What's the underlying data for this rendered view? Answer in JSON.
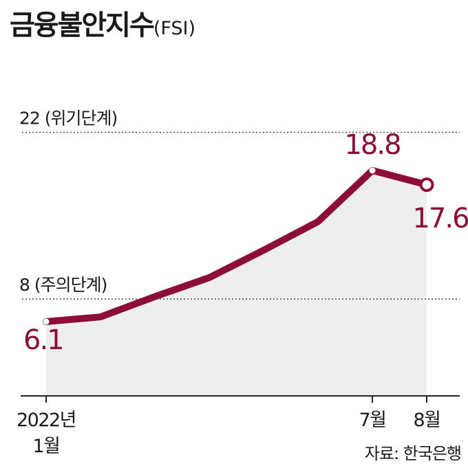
{
  "title": {
    "main": "금융불안지수",
    "sub": "(FSI)"
  },
  "source": "자료: 한국은행",
  "chart_data": {
    "type": "area",
    "points": [
      {
        "month": 1,
        "value": 6.1
      },
      {
        "month": 2,
        "value": 6.5
      },
      {
        "month": 3,
        "value": 8.2
      },
      {
        "month": 4,
        "value": 9.8
      },
      {
        "month": 5,
        "value": 12.1
      },
      {
        "month": 6,
        "value": 14.5
      },
      {
        "month": 7,
        "value": 18.8
      },
      {
        "month": 8,
        "value": 17.6
      }
    ],
    "x_ticks": [
      {
        "month": 1,
        "label": [
          "2022년",
          "1월"
        ]
      },
      {
        "month": 7,
        "label": [
          "7월"
        ]
      },
      {
        "month": 8,
        "label": [
          "8월"
        ]
      }
    ],
    "value_labels": [
      {
        "month": 1,
        "text": "6.1"
      },
      {
        "month": 7,
        "text": "18.8"
      },
      {
        "month": 8,
        "text": "17.6"
      }
    ],
    "thresholds": [
      {
        "value": 22,
        "label": "22 (위기단계)"
      },
      {
        "value": 8,
        "label": "8 (주의단계)"
      }
    ],
    "colors": {
      "line": "#8c0d3a",
      "fill": "#eeeeef",
      "threshold": "#555555",
      "axis": "#222222"
    }
  }
}
